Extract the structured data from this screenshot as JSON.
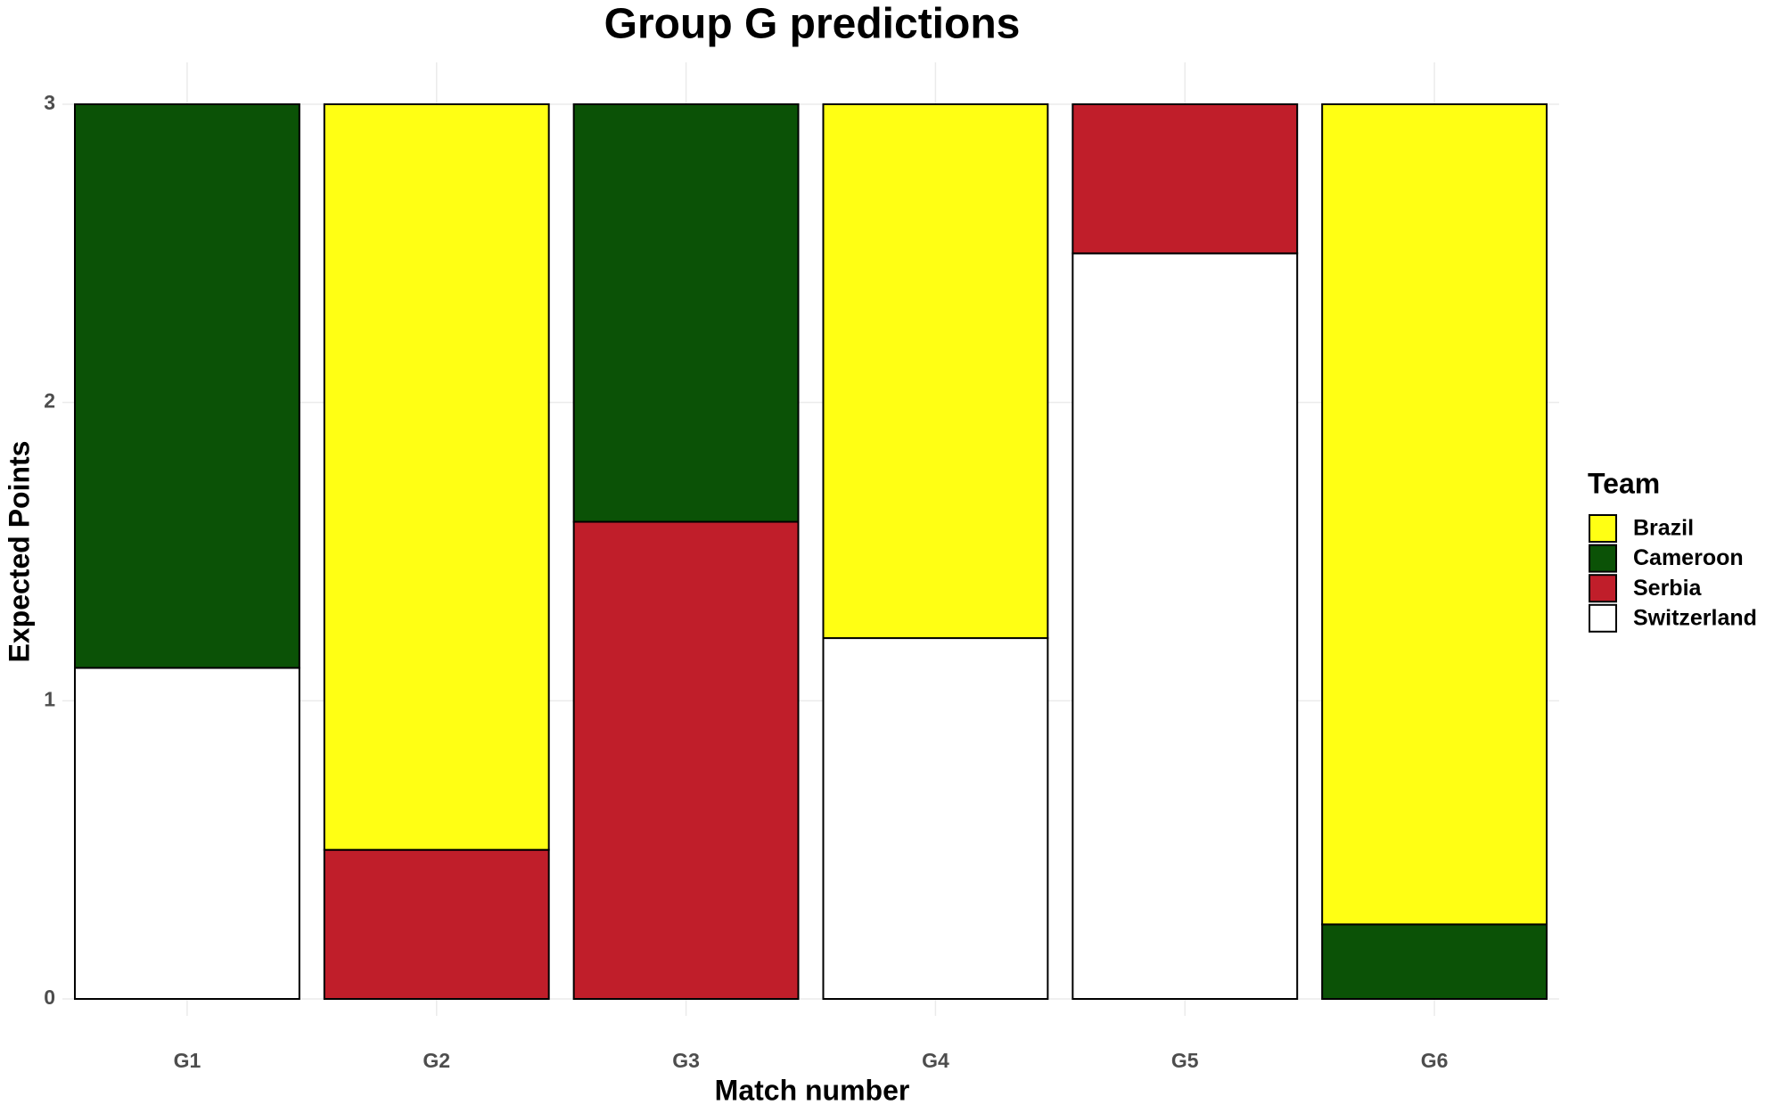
{
  "chart_data": {
    "type": "stacked-bar",
    "title": "Group G predictions",
    "x_label": "Match number",
    "y_label": "Expected Points",
    "categories": [
      "G1",
      "G2",
      "G3",
      "G4",
      "G5",
      "G6"
    ],
    "series": [
      {
        "name": "Brazil",
        "color": "#ffff14",
        "values": [
          null,
          2.5,
          null,
          1.79,
          null,
          2.75
        ]
      },
      {
        "name": "Cameroon",
        "color": "#0b5206",
        "values": [
          1.89,
          null,
          1.4,
          null,
          null,
          0.25
        ]
      },
      {
        "name": "Serbia",
        "color": "#c01e2a",
        "values": [
          null,
          0.5,
          1.6,
          null,
          0.5,
          null
        ]
      },
      {
        "name": "Switzerland",
        "color": "#ffffff",
        "values": [
          1.11,
          null,
          null,
          1.21,
          2.5,
          null
        ]
      }
    ],
    "ylim": [
      0,
      3
    ],
    "yticks": [
      0,
      1,
      2,
      3
    ],
    "grid": true,
    "legend_title": "Team",
    "legend_position": "right"
  }
}
